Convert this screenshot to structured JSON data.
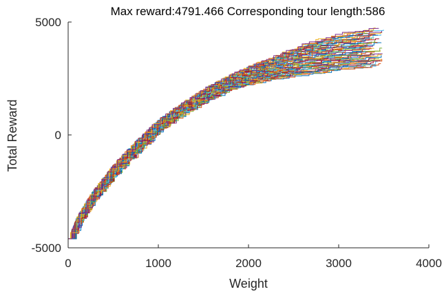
{
  "chart_data": {
    "type": "line",
    "title": "Max reward:4791.466 Corresponding tour length:586",
    "xlabel": "Weight",
    "ylabel": "Total Reward",
    "xlim": [
      0,
      4000
    ],
    "ylim": [
      -5000,
      5000
    ],
    "xticks": [
      0,
      1000,
      2000,
      3000,
      4000
    ],
    "yticks": [
      -5000,
      0,
      5000
    ],
    "xtick_labels": [
      "0",
      "1000",
      "2000",
      "3000",
      "4000"
    ],
    "ytick_labels": [
      "-5000",
      "0",
      "5000"
    ],
    "grid": false,
    "legend": "none",
    "series_count": 60,
    "series_style": "staircase",
    "start_point": {
      "x": 0,
      "y": -4600
    },
    "envelope": {
      "x": [
        0,
        100,
        250,
        500,
        750,
        1000,
        1250,
        1500,
        1750,
        2000,
        2250,
        2500,
        2750,
        3000,
        3250,
        3500
      ],
      "upper": [
        -4600,
        -3600,
        -2600,
        -1300,
        -250,
        700,
        1400,
        2050,
        2600,
        3050,
        3450,
        3850,
        4200,
        4450,
        4650,
        4791.466
      ],
      "lower": [
        -4600,
        -3800,
        -2900,
        -1750,
        -750,
        200,
        900,
        1450,
        1950,
        2250,
        2450,
        2600,
        2700,
        2850,
        2950,
        3100
      ]
    },
    "max_reward": 4791.466,
    "tour_length": 586,
    "colors": [
      "#0072BD",
      "#D95319",
      "#EDB120",
      "#7E2F8E",
      "#77AC30",
      "#4DBEEE",
      "#A2142F"
    ]
  }
}
